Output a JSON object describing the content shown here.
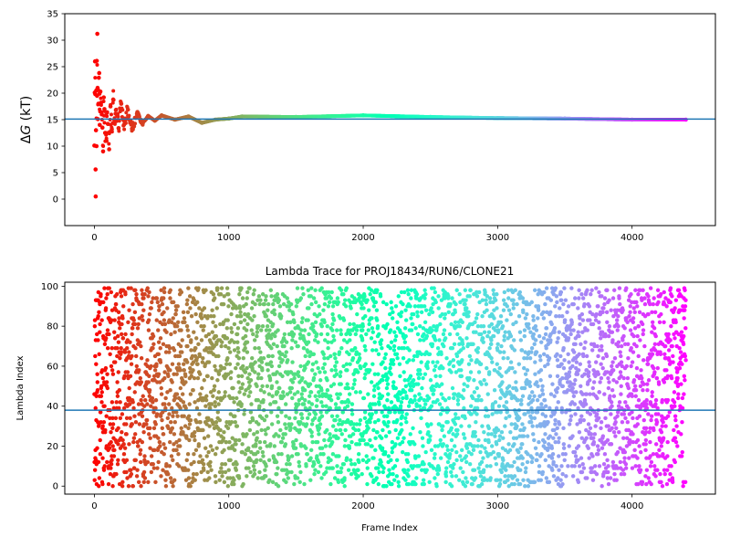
{
  "colors": {
    "reference_line": "#1f77b4",
    "axes": "#000000",
    "colormap": "rainbow (red at frame 0 to violet at frame 4400)"
  },
  "chart_data": [
    {
      "type": "scatter",
      "title": "",
      "xlabel": "",
      "ylabel": "ΔG (kT)",
      "ylabel_parts": {
        "symbol": "Δ",
        "var": "G",
        "unit": " (kT)"
      },
      "xlim": [
        -220,
        4620
      ],
      "ylim": [
        -5,
        35
      ],
      "xticks": [
        0,
        1000,
        2000,
        3000,
        4000
      ],
      "yticks": [
        0,
        5,
        10,
        15,
        20,
        25,
        30,
        35
      ],
      "hline": 15.1,
      "grid": false,
      "legend": "none",
      "series": [
        {
          "points": [
            [
              0,
              10.1
            ],
            [
              3,
              20.1
            ],
            [
              5,
              26.0
            ],
            [
              7,
              19.8
            ],
            [
              9,
              5.6
            ],
            [
              10,
              0.5
            ],
            [
              12,
              13.0
            ],
            [
              14,
              20.5
            ],
            [
              16,
              10.0
            ],
            [
              18,
              26.1
            ],
            [
              20,
              19.5
            ],
            [
              22,
              31.2
            ],
            [
              24,
              21.0
            ],
            [
              26,
              15.1
            ],
            [
              28,
              20.6
            ],
            [
              30,
              18.0
            ],
            [
              33,
              22.9
            ],
            [
              36,
              23.8
            ],
            [
              38,
              19.9
            ],
            [
              40,
              14.0
            ],
            [
              45,
              20.3
            ],
            [
              50,
              18.2
            ],
            [
              55,
              16.0
            ],
            [
              60,
              13.5
            ],
            [
              65,
              9.0
            ],
            [
              70,
              19.2
            ],
            [
              75,
              17.0
            ],
            [
              80,
              12.5
            ],
            [
              85,
              15.8
            ],
            [
              90,
              11.0
            ],
            [
              95,
              16.4
            ],
            [
              100,
              14.2
            ],
            [
              110,
              9.4
            ],
            [
              120,
              17.5
            ],
            [
              130,
              13.2
            ],
            [
              140,
              18.8
            ],
            [
              150,
              14.6
            ],
            [
              160,
              16.8
            ],
            [
              180,
              13.4
            ],
            [
              200,
              18.0
            ],
            [
              220,
              14.0
            ],
            [
              250,
              16.9
            ],
            [
              280,
              13.3
            ],
            [
              320,
              15.9
            ],
            [
              360,
              14.3
            ],
            [
              400,
              15.7
            ],
            [
              450,
              14.8
            ],
            [
              500,
              15.8
            ],
            [
              600,
              15.0
            ],
            [
              700,
              15.6
            ],
            [
              800,
              14.4
            ],
            [
              900,
              15.0
            ],
            [
              1000,
              15.2
            ],
            [
              1100,
              15.6
            ],
            [
              1500,
              15.5
            ],
            [
              2000,
              15.8
            ],
            [
              2500,
              15.5
            ],
            [
              3000,
              15.3
            ],
            [
              3500,
              15.2
            ],
            [
              4000,
              15.0
            ],
            [
              4400,
              15.0
            ]
          ]
        }
      ]
    },
    {
      "type": "scatter",
      "title": "Lambda Trace for PROJ18434/RUN6/CLONE21",
      "xlabel": "Frame Index",
      "ylabel": "Lambda Index",
      "xlim": [
        -220,
        4620
      ],
      "ylim": [
        -4,
        102
      ],
      "xticks": [
        0,
        1000,
        2000,
        3000,
        4000
      ],
      "yticks": [
        0,
        20,
        40,
        60,
        80,
        100
      ],
      "hline": 38,
      "grid": false,
      "legend": "none",
      "frame_range": [
        0,
        4400
      ],
      "lambda_range": [
        0,
        99
      ],
      "series": []
    }
  ]
}
